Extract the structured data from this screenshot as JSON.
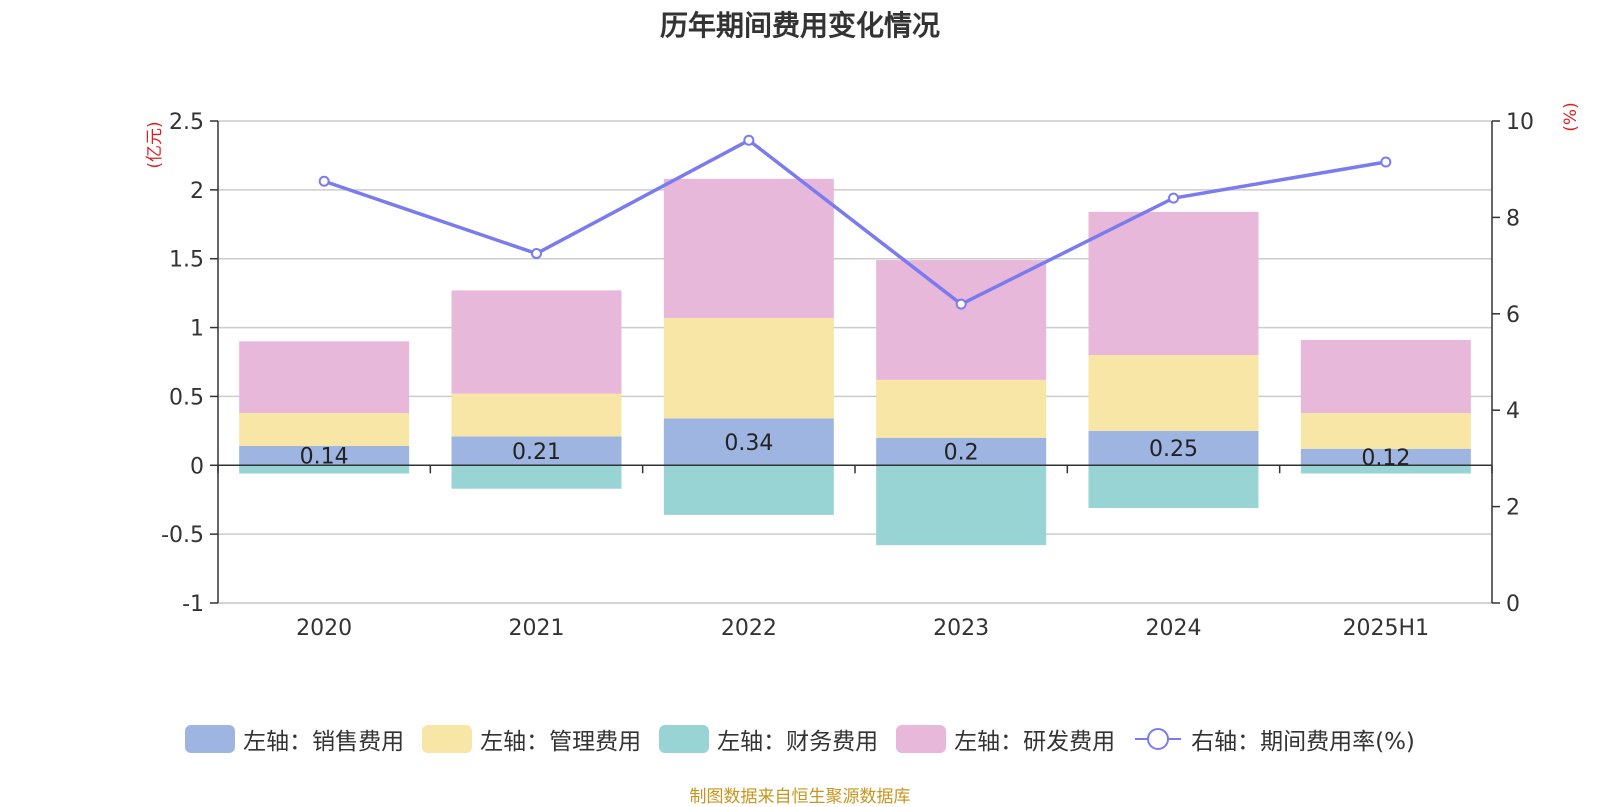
{
  "chart_data": {
    "type": "bar",
    "title": "历年期间费用变化情况",
    "categories": [
      "2020",
      "2021",
      "2022",
      "2023",
      "2024",
      "2025H1"
    ],
    "stacked": true,
    "left_axis": {
      "unit_label": "(亿元)",
      "ylim": [
        -1,
        2.5
      ],
      "ticks": [
        "2.5",
        "2",
        "1.5",
        "1",
        "0.5",
        "0",
        "-0.5",
        "-1"
      ],
      "tick_values": [
        2.5,
        2,
        1.5,
        1,
        0.5,
        0,
        -0.5,
        -1
      ]
    },
    "right_axis": {
      "unit_label": "(%)",
      "ylim": [
        0,
        10
      ],
      "ticks": [
        "10",
        "8",
        "6",
        "4",
        "2",
        "0"
      ],
      "tick_values": [
        10,
        8,
        6,
        4,
        2,
        0
      ]
    },
    "series": [
      {
        "name": "左轴：销售费用",
        "axis": "left",
        "kind": "bar",
        "color": "#9db5e0",
        "values": [
          0.14,
          0.21,
          0.34,
          0.2,
          0.25,
          0.12
        ],
        "show_labels": true
      },
      {
        "name": "左轴：管理费用",
        "axis": "left",
        "kind": "bar",
        "color": "#f8e6a6",
        "values": [
          0.24,
          0.31,
          0.73,
          0.42,
          0.55,
          0.26
        ]
      },
      {
        "name": "左轴：财务费用",
        "axis": "left",
        "kind": "bar",
        "color": "#98d4d4",
        "values": [
          -0.06,
          -0.17,
          -0.36,
          -0.58,
          -0.31,
          -0.06
        ]
      },
      {
        "name": "左轴：研发费用",
        "axis": "left",
        "kind": "bar",
        "color": "#e7b8da",
        "values": [
          0.52,
          0.75,
          1.01,
          0.87,
          1.04,
          0.53
        ]
      },
      {
        "name": "右轴：期间费用率(%)",
        "axis": "right",
        "kind": "line",
        "color": "#7b7bf0",
        "values": [
          8.75,
          7.25,
          9.6,
          6.2,
          8.4,
          9.15
        ]
      }
    ],
    "grid": true,
    "legend_position": "bottom"
  },
  "source_note": "制图数据来自恒生聚源数据库"
}
